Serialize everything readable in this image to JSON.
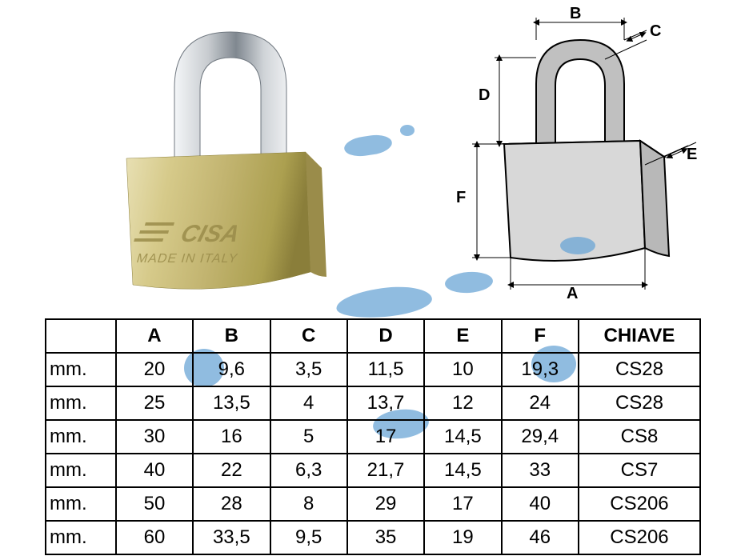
{
  "photo": {
    "brand": "CISA",
    "subtitle": "MADE IN ITALY",
    "body_color": "#c8b873",
    "body_highlight": "#e4dcb0",
    "body_shadow": "#9a8c4a",
    "shackle_light": "#eceef0",
    "shackle_dark": "#808890",
    "engraving_color": "#9a8c4a"
  },
  "diagram": {
    "labels": {
      "A": "A",
      "B": "B",
      "C": "C",
      "D": "D",
      "E": "E",
      "F": "F"
    },
    "stroke": "#000000",
    "fill_body": "#d8d8d8",
    "fill_shackle": "#c0c0c0",
    "fill_top": "#b0b0b0",
    "label_fontsize": 20
  },
  "watermark_color": "#6ba6d6",
  "table": {
    "unit_label": "mm.",
    "headers": [
      "",
      "A",
      "B",
      "C",
      "D",
      "E",
      "F",
      "CHIAVE"
    ],
    "rows": [
      [
        "mm.",
        "20",
        "9,6",
        "3,5",
        "11,5",
        "10",
        "19,3",
        "CS28"
      ],
      [
        "mm.",
        "25",
        "13,5",
        "4",
        "13,7",
        "12",
        "24",
        "CS28"
      ],
      [
        "mm.",
        "30",
        "16",
        "5",
        "17",
        "14,5",
        "29,4",
        "CS8"
      ],
      [
        "mm.",
        "40",
        "22",
        "6,3",
        "21,7",
        "14,5",
        "33",
        "CS7"
      ],
      [
        "mm.",
        "50",
        "28",
        "8",
        "29",
        "17",
        "40",
        "CS206"
      ],
      [
        "mm.",
        "60",
        "33,5",
        "9,5",
        "35",
        "19",
        "46",
        "CS206"
      ]
    ],
    "border_color": "#000000",
    "font_size": 24
  }
}
